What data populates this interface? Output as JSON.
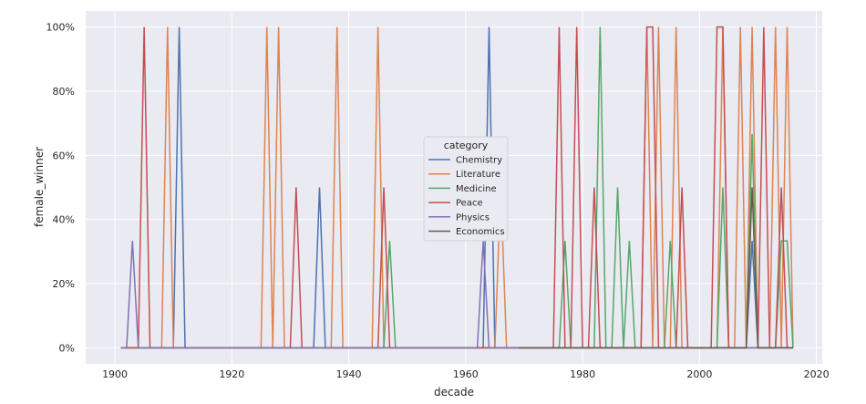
{
  "chart_data": {
    "type": "line",
    "title": "",
    "xlabel": "decade",
    "ylabel": "female_winner",
    "xlim": [
      1895,
      2021
    ],
    "ylim": [
      -0.05,
      1.05
    ],
    "xticks": [
      1900,
      1920,
      1940,
      1960,
      1980,
      2000,
      2020
    ],
    "yticks": [
      0,
      0.2,
      0.4,
      0.6,
      0.8,
      1.0
    ],
    "ytick_labels": [
      "0%",
      "20%",
      "40%",
      "60%",
      "80%",
      "100%"
    ],
    "grid": true,
    "background": "#eaeaf2",
    "legend": {
      "title": "category",
      "placement": "center"
    },
    "series": [
      {
        "name": "Chemistry",
        "color": "#4c72b0",
        "points": [
          [
            1901,
            0
          ],
          [
            1910,
            0
          ],
          [
            1911,
            1
          ],
          [
            1912,
            0
          ],
          [
            1934,
            0
          ],
          [
            1935,
            0.5
          ],
          [
            1936,
            0
          ],
          [
            1963,
            0
          ],
          [
            1964,
            1
          ],
          [
            1965,
            0
          ],
          [
            2008,
            0
          ],
          [
            2009,
            0.3333
          ],
          [
            2010,
            0
          ],
          [
            2016,
            0
          ]
        ]
      },
      {
        "name": "Literature",
        "color": "#dd8452",
        "points": [
          [
            1901,
            0
          ],
          [
            1908,
            0
          ],
          [
            1909,
            1
          ],
          [
            1910,
            0
          ],
          [
            1925,
            0
          ],
          [
            1926,
            1
          ],
          [
            1927,
            0
          ],
          [
            1928,
            1
          ],
          [
            1929,
            0
          ],
          [
            1937,
            0
          ],
          [
            1938,
            1
          ],
          [
            1939,
            0
          ],
          [
            1944,
            0
          ],
          [
            1945,
            1
          ],
          [
            1946,
            0
          ],
          [
            1965,
            0
          ],
          [
            1966,
            0.5
          ],
          [
            1967,
            0
          ],
          [
            1990,
            0
          ],
          [
            1991,
            1
          ],
          [
            1992,
            0
          ],
          [
            1993,
            1
          ],
          [
            1994,
            0
          ],
          [
            1995,
            0
          ],
          [
            1996,
            1
          ],
          [
            1997,
            0
          ],
          [
            2003,
            0
          ],
          [
            2004,
            1
          ],
          [
            2005,
            0
          ],
          [
            2006,
            0
          ],
          [
            2007,
            1
          ],
          [
            2008,
            0
          ],
          [
            2009,
            1
          ],
          [
            2010,
            0
          ],
          [
            2012,
            0
          ],
          [
            2013,
            1
          ],
          [
            2014,
            0
          ],
          [
            2015,
            1
          ],
          [
            2016,
            0
          ]
        ]
      },
      {
        "name": "Medicine",
        "color": "#55a868",
        "points": [
          [
            1901,
            0
          ],
          [
            1946,
            0
          ],
          [
            1947,
            0.3333
          ],
          [
            1948,
            0
          ],
          [
            1976,
            0
          ],
          [
            1977,
            0.3333
          ],
          [
            1978,
            0
          ],
          [
            1982,
            0
          ],
          [
            1983,
            1
          ],
          [
            1984,
            0
          ],
          [
            1985,
            0
          ],
          [
            1986,
            0.5
          ],
          [
            1987,
            0
          ],
          [
            1988,
            0.3333
          ],
          [
            1989,
            0
          ],
          [
            1994,
            0
          ],
          [
            1995,
            0.3333
          ],
          [
            1996,
            0
          ],
          [
            2003,
            0
          ],
          [
            2004,
            0.5
          ],
          [
            2005,
            0
          ],
          [
            2008,
            0
          ],
          [
            2009,
            0.6667
          ],
          [
            2010,
            0
          ],
          [
            2013,
            0
          ],
          [
            2014,
            0.3333
          ],
          [
            2015,
            0.3333
          ],
          [
            2016,
            0
          ]
        ]
      },
      {
        "name": "Peace",
        "color": "#c44e52",
        "points": [
          [
            1901,
            0
          ],
          [
            1904,
            0
          ],
          [
            1905,
            1
          ],
          [
            1906,
            0
          ],
          [
            1930,
            0
          ],
          [
            1931,
            0.5
          ],
          [
            1932,
            0
          ],
          [
            1945,
            0
          ],
          [
            1946,
            0.5
          ],
          [
            1947,
            0
          ],
          [
            1975,
            0
          ],
          [
            1976,
            1
          ],
          [
            1977,
            0
          ],
          [
            1978,
            0
          ],
          [
            1979,
            1
          ],
          [
            1980,
            0
          ],
          [
            1981,
            0
          ],
          [
            1982,
            0.5
          ],
          [
            1983,
            0
          ],
          [
            1990,
            0
          ],
          [
            1991,
            1
          ],
          [
            1992,
            1
          ],
          [
            1993,
            0
          ],
          [
            1996,
            0
          ],
          [
            1997,
            0.5
          ],
          [
            1998,
            0
          ],
          [
            2002,
            0
          ],
          [
            2003,
            1
          ],
          [
            2004,
            1
          ],
          [
            2005,
            0
          ],
          [
            2010,
            0
          ],
          [
            2011,
            1
          ],
          [
            2012,
            0
          ],
          [
            2013,
            0
          ],
          [
            2014,
            0.5
          ],
          [
            2015,
            0
          ],
          [
            2016,
            0
          ]
        ]
      },
      {
        "name": "Physics",
        "color": "#8172b3",
        "points": [
          [
            1901,
            0
          ],
          [
            1902,
            0
          ],
          [
            1903,
            0.3333
          ],
          [
            1904,
            0
          ],
          [
            1962,
            0
          ],
          [
            1963,
            0.3333
          ],
          [
            1964,
            0
          ],
          [
            2016,
            0
          ]
        ]
      },
      {
        "name": "Economics",
        "color": "#6b5a4a",
        "points": [
          [
            1969,
            0
          ],
          [
            2008,
            0
          ],
          [
            2009,
            0.5
          ],
          [
            2010,
            0
          ],
          [
            2016,
            0
          ]
        ]
      }
    ]
  }
}
